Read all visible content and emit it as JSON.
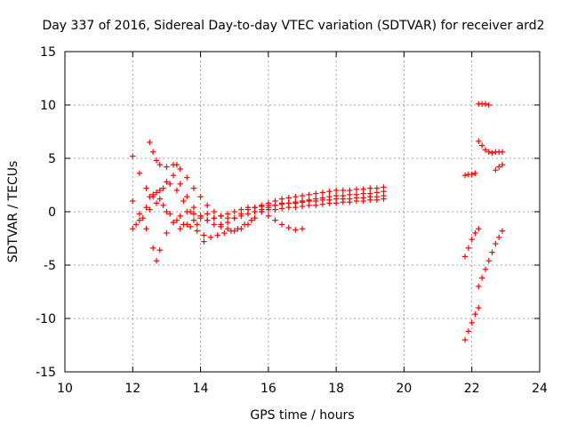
{
  "chart_data": {
    "type": "scatter",
    "title": "Day 337 of 2016, Sidereal Day-to-day VTEC variation (SDTVAR) for receiver ard2",
    "xlabel": "GPS time / hours",
    "ylabel": "SDTVAR / TECUs",
    "xlim": [
      10,
      24
    ],
    "ylim": [
      -15,
      15
    ],
    "xticks": [
      10,
      12,
      14,
      16,
      18,
      20,
      22,
      24
    ],
    "yticks": [
      -15,
      -10,
      -5,
      0,
      5,
      10,
      15
    ],
    "grid": true,
    "marker": "plus",
    "color": "#ff0000",
    "series": [
      {
        "x": [
          12.0,
          12.2,
          12.4,
          12.6,
          12.8,
          13.0,
          13.2,
          13.4,
          13.6,
          13.8,
          14.0,
          14.2,
          14.4,
          14.6,
          14.8,
          15.0,
          15.2,
          15.4,
          15.6,
          15.8,
          16.0,
          16.2,
          16.4,
          16.6,
          16.8,
          17.0,
          17.2,
          17.4,
          17.6,
          17.8,
          18.0,
          18.2,
          18.4,
          18.6,
          18.8,
          19.0,
          19.2,
          19.4
        ],
        "y": [
          5.2,
          3.6,
          2.2,
          1.4,
          2.0,
          2.8,
          3.4,
          2.6,
          1.4,
          0.4,
          -0.4,
          -0.8,
          -1.2,
          -1.4,
          -1.0,
          -0.6,
          -0.2,
          0.2,
          0.4,
          0.6,
          0.8,
          1.0,
          1.2,
          1.3,
          1.4,
          1.5,
          1.6,
          1.7,
          1.8,
          1.9,
          2.0,
          2.0,
          2.0,
          2.1,
          2.1,
          2.2,
          2.2,
          2.3
        ]
      },
      {
        "x": [
          12.5,
          12.6,
          12.7,
          12.8,
          13.0,
          13.2,
          13.3,
          13.4,
          13.6,
          13.8,
          14.0,
          14.2,
          14.4,
          14.6,
          14.8,
          15.0,
          15.2,
          15.4,
          15.6,
          15.8,
          16.0,
          16.2,
          16.4,
          16.6,
          16.8,
          17.0,
          17.2,
          17.4,
          17.6,
          17.8,
          18.0,
          18.2,
          18.4,
          18.6,
          18.8,
          19.0,
          19.2,
          19.4
        ],
        "y": [
          6.5,
          5.6,
          4.8,
          4.4,
          4.2,
          4.4,
          4.4,
          4.0,
          3.2,
          2.2,
          1.4,
          0.6,
          0.0,
          -0.4,
          -0.6,
          -0.6,
          -0.4,
          -0.2,
          0.0,
          0.2,
          0.4,
          0.6,
          0.8,
          0.8,
          0.9,
          1.0,
          1.1,
          1.2,
          1.3,
          1.4,
          1.5,
          1.5,
          1.6,
          1.6,
          1.7,
          1.7,
          1.8,
          1.9
        ]
      },
      {
        "x": [
          12.0,
          12.2,
          12.4,
          12.6,
          12.7,
          12.8,
          13.0,
          13.2,
          13.4,
          13.6,
          13.8,
          14.0,
          14.2,
          14.4,
          14.6,
          14.8,
          15.0,
          15.2,
          15.4,
          15.6,
          15.8,
          16.0,
          16.2,
          16.4,
          16.6,
          16.8,
          17.0,
          17.2,
          17.4,
          17.6,
          17.8,
          18.0,
          18.2,
          18.4,
          18.6,
          18.8,
          19.0,
          19.2,
          19.4
        ],
        "y": [
          1.0,
          -0.2,
          -1.6,
          -3.4,
          -4.6,
          -3.6,
          -2.0,
          -1.0,
          -0.4,
          0.0,
          -0.2,
          -0.6,
          -0.8,
          -0.6,
          -0.4,
          -0.2,
          0.0,
          0.2,
          0.4,
          0.4,
          0.5,
          0.6,
          0.6,
          0.7,
          0.8,
          0.8,
          0.9,
          1.0,
          1.0,
          1.1,
          1.1,
          1.2,
          1.2,
          1.2,
          1.3,
          1.3,
          1.4,
          1.4,
          1.5
        ]
      },
      {
        "x": [
          12.0,
          12.2,
          12.4,
          12.6,
          12.8,
          13.0,
          13.2,
          13.4,
          13.6,
          13.8,
          14.0,
          14.2,
          14.4,
          14.6,
          14.8,
          15.0,
          15.2,
          15.4,
          15.6,
          15.8,
          16.0,
          16.2,
          16.4,
          16.6,
          16.8,
          17.0,
          17.2,
          17.4,
          17.6,
          17.8,
          18.0,
          18.2,
          18.4,
          18.6,
          18.8,
          19.0,
          19.2,
          19.4
        ],
        "y": [
          -1.6,
          -0.8,
          0.4,
          1.6,
          1.2,
          0.0,
          -1.0,
          -1.6,
          -1.2,
          -0.8,
          -0.4,
          -0.2,
          -0.6,
          -1.2,
          -1.6,
          -1.8,
          -1.6,
          -1.2,
          -0.6,
          0.0,
          0.2,
          0.2,
          0.3,
          0.4,
          0.4,
          0.5,
          0.6,
          0.6,
          0.7,
          0.8,
          0.8,
          0.9,
          0.9,
          1.0,
          1.0,
          1.1,
          1.1,
          1.2
        ]
      },
      {
        "x": [
          12.1,
          12.3,
          12.5,
          12.7,
          12.9,
          13.1,
          13.3,
          13.5,
          13.7,
          13.9,
          14.1,
          14.3,
          14.5,
          14.7,
          14.9,
          15.1,
          15.3,
          15.5
        ],
        "y": [
          -1.2,
          -0.6,
          0.2,
          0.8,
          0.6,
          -0.2,
          -0.8,
          -1.2,
          -1.4,
          -1.8,
          -2.2,
          -2.4,
          -2.2,
          -2.0,
          -1.8,
          -1.6,
          -1.2,
          -0.8
        ]
      },
      {
        "x": [
          12.5,
          12.7,
          12.9,
          13.1,
          13.3,
          13.5,
          13.7,
          13.9,
          14.1
        ],
        "y": [
          1.4,
          1.8,
          2.2,
          2.6,
          2.0,
          1.0,
          0.0,
          -1.2,
          -2.8
        ]
      },
      {
        "x": [
          15.8,
          16.0,
          16.2,
          16.4,
          16.6,
          16.8,
          17.0
        ],
        "y": [
          0.0,
          -0.4,
          -0.8,
          -1.2,
          -1.5,
          -1.7,
          -1.6
        ]
      },
      {
        "x": [
          21.8,
          21.9,
          22.0,
          22.1,
          22.2
        ],
        "y": [
          -12.0,
          -11.2,
          -10.4,
          -9.6,
          -9.0
        ]
      },
      {
        "x": [
          21.8,
          21.9,
          22.0,
          22.1,
          22.2
        ],
        "y": [
          -4.2,
          -3.4,
          -2.6,
          -2.0,
          -1.6
        ]
      },
      {
        "x": [
          22.2,
          22.3,
          22.4,
          22.5,
          22.6,
          22.7,
          22.8,
          22.9
        ],
        "y": [
          -7.0,
          -6.2,
          -5.4,
          -4.6,
          -3.8,
          -3.0,
          -2.4,
          -1.8
        ]
      },
      {
        "x": [
          21.8,
          21.9,
          22.0,
          22.1
        ],
        "y": [
          3.4,
          3.5,
          3.5,
          3.6
        ]
      },
      {
        "x": [
          22.2,
          22.3,
          22.4,
          22.5,
          22.6,
          22.7,
          22.8,
          22.9
        ],
        "y": [
          6.6,
          6.2,
          5.8,
          5.6,
          5.5,
          5.6,
          5.6,
          5.6
        ]
      },
      {
        "x": [
          22.7,
          22.8,
          22.9
        ],
        "y": [
          3.9,
          4.2,
          4.4
        ]
      },
      {
        "x": [
          22.2,
          22.3,
          22.4,
          22.5
        ],
        "y": [
          10.1,
          10.1,
          10.1,
          10.0
        ]
      }
    ]
  }
}
